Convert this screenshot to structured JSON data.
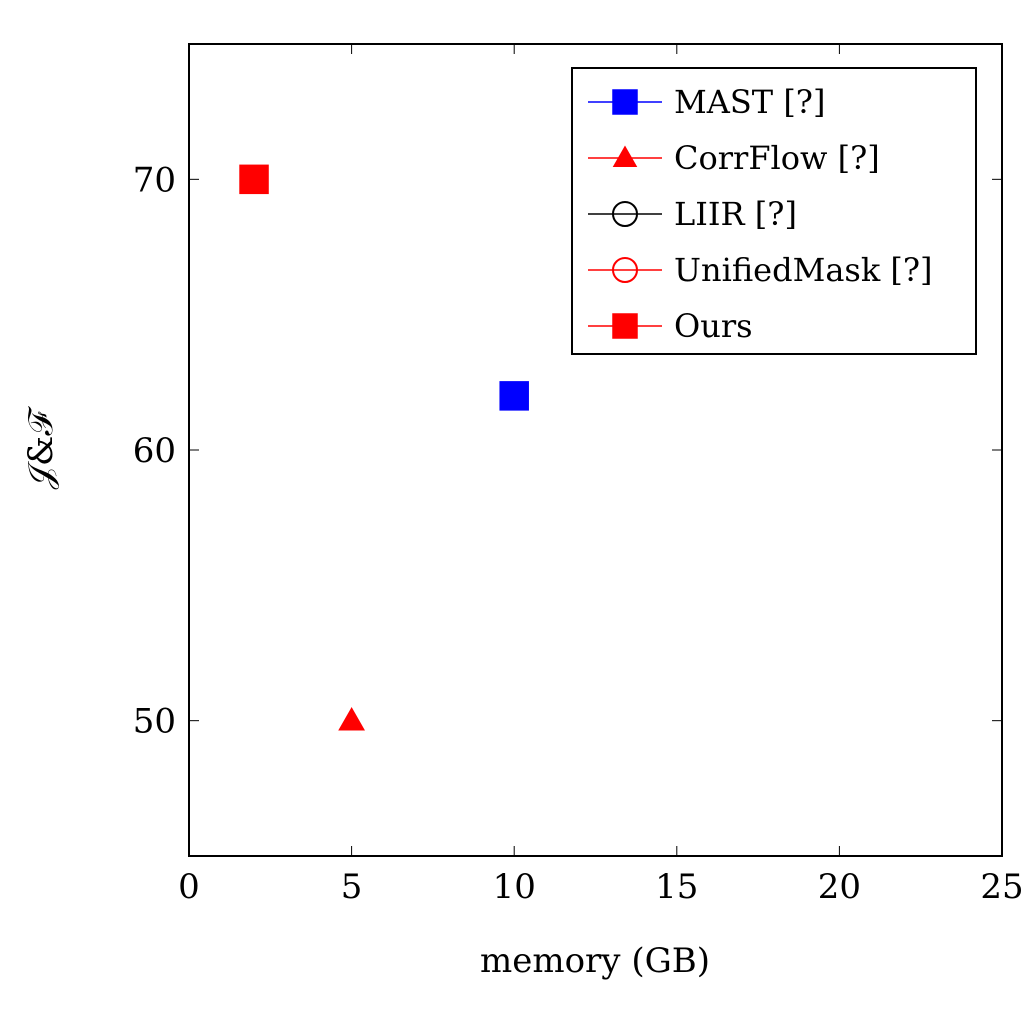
{
  "chart_data": {
    "type": "scatter",
    "xlabel": "memory (GB)",
    "ylabel": "𝒥&ℱ",
    "xlim": [
      0,
      25
    ],
    "ylim": [
      45,
      75
    ],
    "xticks": [
      0,
      5,
      10,
      15,
      20,
      25
    ],
    "yticks": [
      50,
      60,
      70
    ],
    "grid": false,
    "legend_position": "top-right",
    "series": [
      {
        "name": "MAST [?]",
        "marker": "square",
        "color": "#0000ff",
        "marker_fill": true,
        "points": [
          {
            "x": 10,
            "y": 62
          }
        ]
      },
      {
        "name": "CorrFlow [?]",
        "marker": "triangle",
        "color": "#ff0000",
        "marker_fill": true,
        "points": [
          {
            "x": 5,
            "y": 50
          }
        ]
      },
      {
        "name": "LIIR [?]",
        "marker": "circle",
        "color": "#000000",
        "marker_fill": false,
        "points": []
      },
      {
        "name": "UnifiedMask [?]",
        "marker": "circle",
        "color": "#ff0000",
        "marker_fill": false,
        "points": []
      },
      {
        "name": "Ours",
        "marker": "square",
        "color": "#ff0000",
        "marker_fill": true,
        "points": [
          {
            "x": 2,
            "y": 70
          }
        ]
      }
    ]
  }
}
